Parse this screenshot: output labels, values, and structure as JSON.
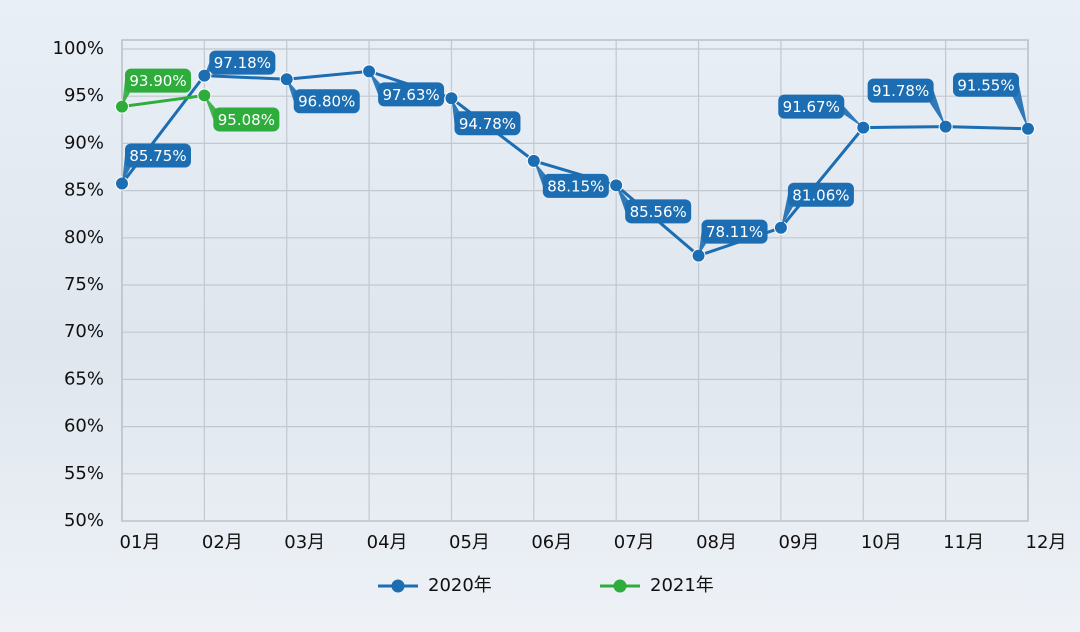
{
  "chart_data": {
    "type": "line",
    "categories": [
      "01月",
      "02月",
      "03月",
      "04月",
      "05月",
      "06月",
      "07月",
      "08月",
      "09月",
      "10月",
      "11月",
      "12月"
    ],
    "series": [
      {
        "name": "2020年",
        "color": "#1c6db2",
        "values": [
          85.75,
          97.18,
          96.8,
          97.63,
          94.78,
          88.15,
          85.56,
          78.11,
          81.06,
          91.67,
          91.78,
          91.55
        ],
        "value_labels": [
          "85.75%",
          "97.18%",
          "96.80%",
          "97.63%",
          "94.78%",
          "88.15%",
          "85.56%",
          "78.11%",
          "81.06%",
          "91.67%",
          "91.78%",
          "91.55%"
        ]
      },
      {
        "name": "2021年",
        "color": "#2eac3c",
        "values": [
          93.9,
          95.08,
          null,
          null,
          null,
          null,
          null,
          null,
          null,
          null,
          null,
          null
        ],
        "value_labels": [
          "93.90%",
          "95.08%",
          null,
          null,
          null,
          null,
          null,
          null,
          null,
          null,
          null,
          null
        ]
      }
    ],
    "ylim": [
      50,
      100
    ],
    "yticks": [
      {
        "value": 50,
        "label": "50%"
      },
      {
        "value": 55,
        "label": "55%"
      },
      {
        "value": 60,
        "label": "60%"
      },
      {
        "value": 65,
        "label": "65%"
      },
      {
        "value": 70,
        "label": "70%"
      },
      {
        "value": 75,
        "label": "75%"
      },
      {
        "value": 80,
        "label": "80%"
      },
      {
        "value": 85,
        "label": "85%"
      },
      {
        "value": 90,
        "label": "90%"
      },
      {
        "value": 95,
        "label": "95%"
      },
      {
        "value": 100,
        "label": "100%"
      }
    ],
    "grid": true,
    "legend": "bottom"
  }
}
